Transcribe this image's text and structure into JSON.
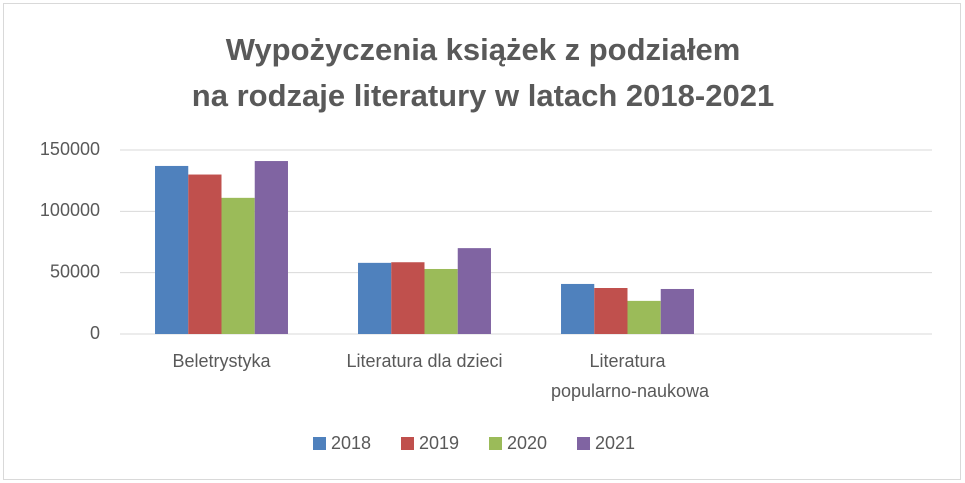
{
  "chart_data": {
    "type": "bar",
    "title": [
      "Wypożyczenia książek z podziałem",
      "na rodzaje literatury w latach 2018-2021"
    ],
    "categories": [
      "Beletrystyka",
      "Literatura dla dzieci",
      "Literatura popularno-naukowa",
      null
    ],
    "series": [
      {
        "name": "2018",
        "color": "#4f81bd",
        "values": [
          137000,
          58000,
          40800,
          null
        ]
      },
      {
        "name": "2019",
        "color": "#c0504d",
        "values": [
          130000,
          58500,
          37500,
          null
        ]
      },
      {
        "name": "2020",
        "color": "#9bbb59",
        "values": [
          111000,
          53000,
          27000,
          null
        ]
      },
      {
        "name": "2021",
        "color": "#8064a2",
        "values": [
          141000,
          70000,
          36700,
          null
        ]
      }
    ],
    "ylim": [
      0,
      150000
    ],
    "yticks": [
      0,
      50000,
      100000,
      150000
    ],
    "grid": true,
    "legend": "bottom"
  }
}
